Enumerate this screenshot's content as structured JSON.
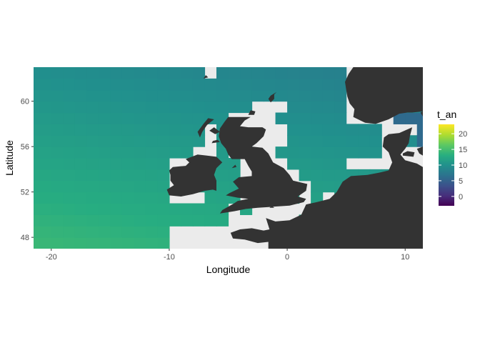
{
  "chart_data": {
    "type": "heatmap",
    "subtype": "map raster with land overlay",
    "title": "",
    "xlabel": "Longitude",
    "ylabel": "Latitude",
    "xlim": [
      -21.5,
      11.5
    ],
    "ylim": [
      47,
      63
    ],
    "x_ticks": [
      -20,
      -10,
      0,
      10
    ],
    "x_tick_labels": [
      "-20",
      "-10",
      "0",
      "10"
    ],
    "y_ticks": [
      48,
      52,
      56,
      60
    ],
    "y_tick_labels": [
      "48",
      "52",
      "56",
      "60"
    ],
    "grid": false,
    "panel_background": "#EBEBEB",
    "land_color": "#333333",
    "colormap": "viridis",
    "legend": {
      "title": "t_an",
      "position": "right",
      "range": [
        -3,
        23
      ],
      "breaks": [
        0,
        5,
        10,
        15,
        20
      ],
      "break_labels": [
        "0",
        "5",
        "10",
        "15",
        "20"
      ]
    },
    "field_estimates": {
      "description_of_gradient": "temperature increases toward southwest",
      "samples": [
        {
          "lon": -20,
          "lat": 62,
          "t_an": 9
        },
        {
          "lon": -20,
          "lat": 48,
          "t_an": 13.5
        },
        {
          "lon": -10,
          "lat": 48,
          "t_an": 13
        },
        {
          "lon": -10,
          "lat": 58,
          "t_an": 10.5
        },
        {
          "lon": 0,
          "lat": 60,
          "t_an": 9
        },
        {
          "lon": 4,
          "lat": 56,
          "t_an": 8
        },
        {
          "lon": 10.5,
          "lat": 58.5,
          "t_an": 6
        },
        {
          "lon": 11.2,
          "lat": 56.5,
          "t_an": 6
        },
        {
          "lon": 0.5,
          "lat": 50.5,
          "t_an": 11
        }
      ]
    }
  }
}
